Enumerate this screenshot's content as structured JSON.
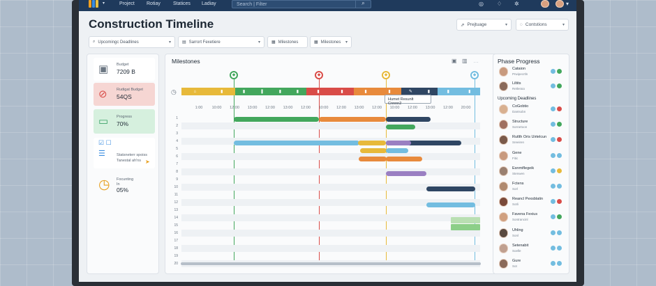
{
  "nav": {
    "menu": [
      "Project",
      "Rotiay",
      "Statices",
      "Ladiay"
    ],
    "search_placeholder": "Search | Filter",
    "search_icon": "search-icon"
  },
  "page": {
    "title": "Construction Timeline",
    "select1": "Prejtuage",
    "select2": "Contstions"
  },
  "filters": {
    "f1": "Upcomingc Deadlines",
    "f2": "Sarrort Fexetiere",
    "f3": "Milestones",
    "f4": "Milestones"
  },
  "stats": {
    "budget_label": "Budget",
    "budget_value": "7209 B",
    "risk_label": "Rudigat Budget",
    "risk_value": "54QS",
    "progress_label": "Progress",
    "progress_value": "70%",
    "tasks_line1": "Statsneterr spoiss",
    "tasks_line2": "Tanestal ah'ns",
    "forecast_label": "Focunting",
    "forecast_sub": "In",
    "forecast_value": "05%"
  },
  "milestones": {
    "title": "Milestones",
    "tooltip": "Humet Resunlt Cnnnn2",
    "x_labels": [
      "1:00",
      "10:00",
      "12:00",
      "13:00",
      "12:00",
      "13:00",
      "12:00",
      "10:00",
      "12:00",
      "13:00",
      "12:00",
      "10:00",
      "12:00",
      "13:00",
      "12:00",
      "20:00"
    ],
    "rows": [
      "1",
      "2",
      "3",
      "4",
      "5",
      "6",
      "7",
      "8",
      "9",
      "10",
      "11",
      "12",
      "13",
      "14",
      "15",
      "16",
      "17",
      "18",
      "19",
      "20"
    ],
    "colors": {
      "yellow": "#e7b93a",
      "green": "#43a75d",
      "teal": "#3ea38f",
      "red": "#d94c48",
      "orange": "#e88a3c",
      "navy": "#2f4663",
      "lightblue": "#73bde0",
      "purple": "#9a7fc2",
      "paleGreen": "#b9dfb2"
    }
  },
  "phase": {
    "title": "Phase Progress",
    "upcoming": "Upcoming Deadlines",
    "items": [
      {
        "name": "Cataion",
        "sub": "Prwipecrtln"
      },
      {
        "name": "Liltits",
        "sub": "Retleraio"
      },
      {
        "name": "CoGobtio",
        "sub": "Dantsobn"
      },
      {
        "name": "Structure",
        "sub": "Sorrartoon"
      },
      {
        "name": "Rutlth Oris Uirtelcun",
        "sub": "Sreeiren"
      },
      {
        "name": "Gene",
        "sub": "Fitic"
      },
      {
        "name": "Esnmiflegeik",
        "sub": "Stenwen"
      },
      {
        "name": "Fctens",
        "sub": "Sorl"
      },
      {
        "name": "Reancl Pexsblatin",
        "sub": "Sotli"
      },
      {
        "name": "Favena Fexius",
        "sub": "Sontrancinl"
      },
      {
        "name": "Uhling",
        "sub": "Sonl"
      },
      {
        "name": "Setenabit",
        "sub": "Soelle"
      },
      {
        "name": "Gure",
        "sub": "Sot"
      }
    ]
  }
}
